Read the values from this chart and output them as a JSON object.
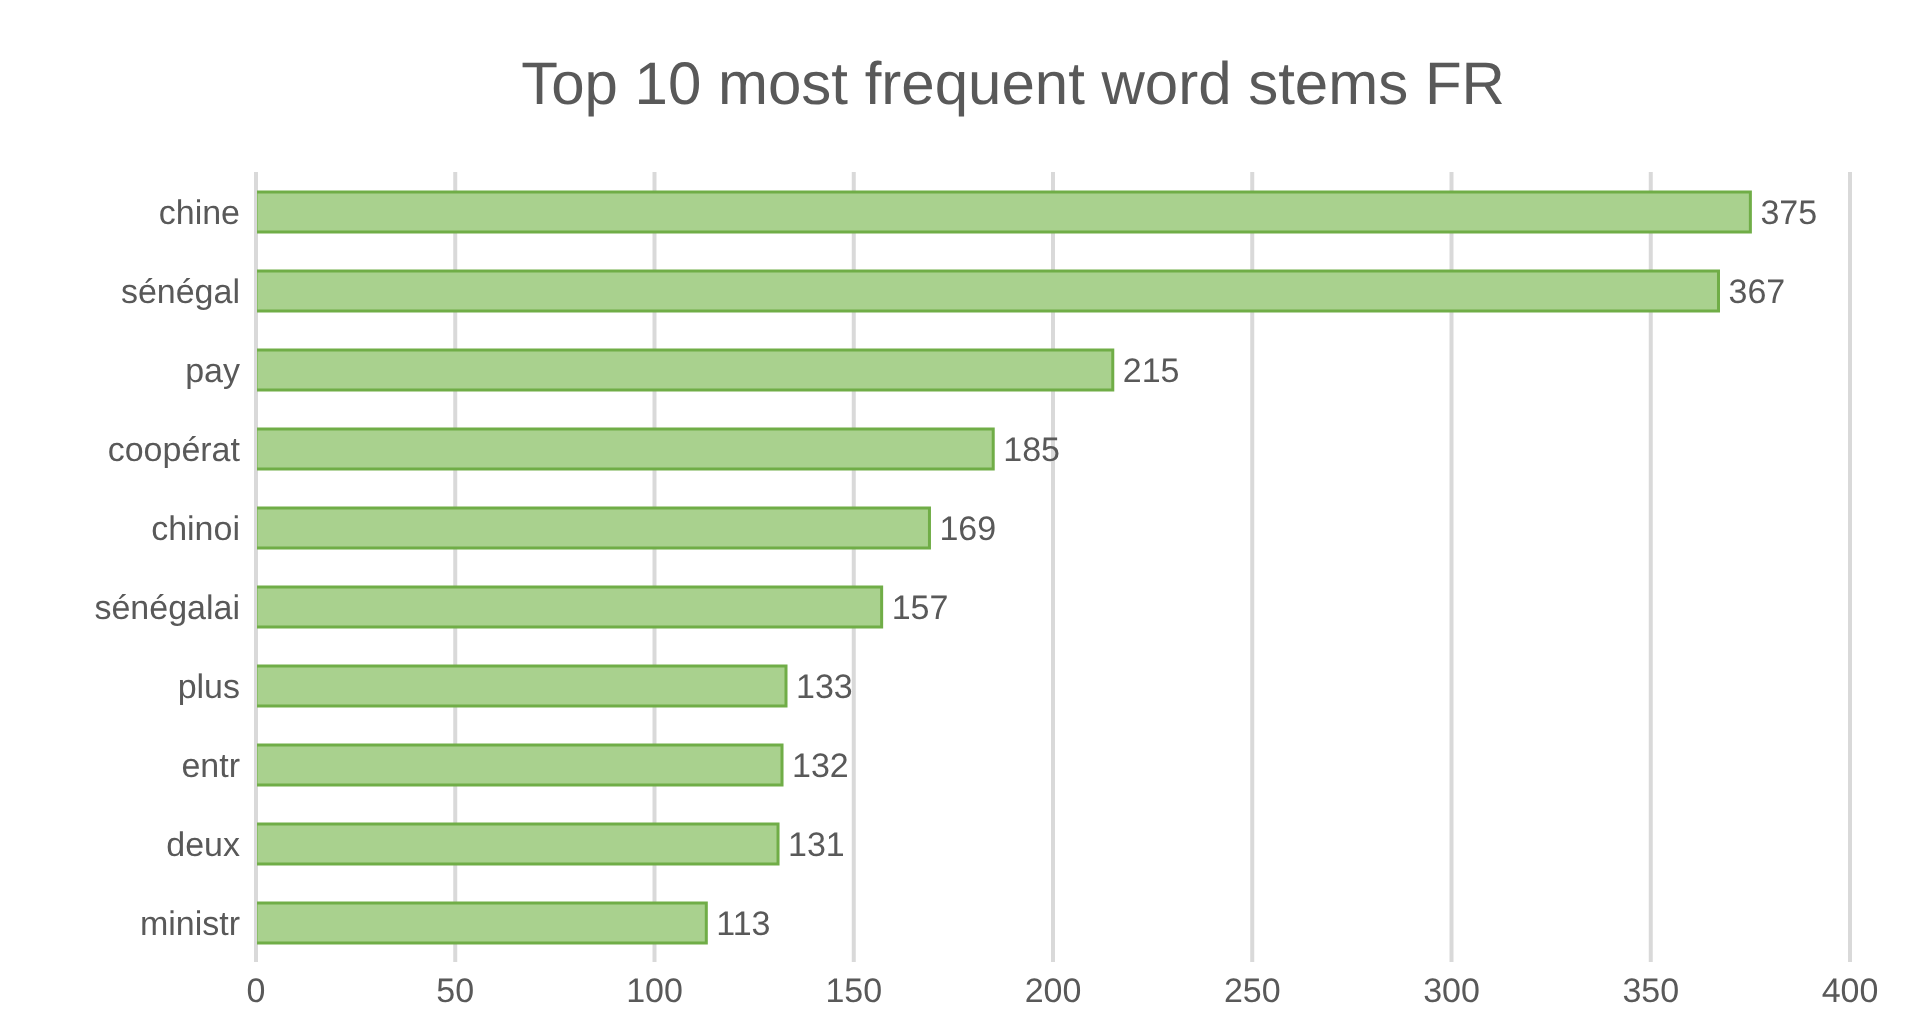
{
  "chart_data": {
    "type": "bar",
    "orientation": "horizontal",
    "title": "Top 10 most frequent word stems FR",
    "categories": [
      "chine",
      "sénégal",
      "pay",
      "coopérat",
      "chinoi",
      "sénégalai",
      "plus",
      "entr",
      "deux",
      "ministr"
    ],
    "values": [
      375,
      367,
      215,
      185,
      169,
      157,
      133,
      132,
      131,
      113
    ],
    "color": "#a9d18e",
    "xlim": [
      0,
      400
    ],
    "xticks": [
      0,
      50,
      100,
      150,
      200,
      250,
      300,
      350,
      400
    ],
    "grid": "x",
    "data_labels": true,
    "legend": false
  }
}
